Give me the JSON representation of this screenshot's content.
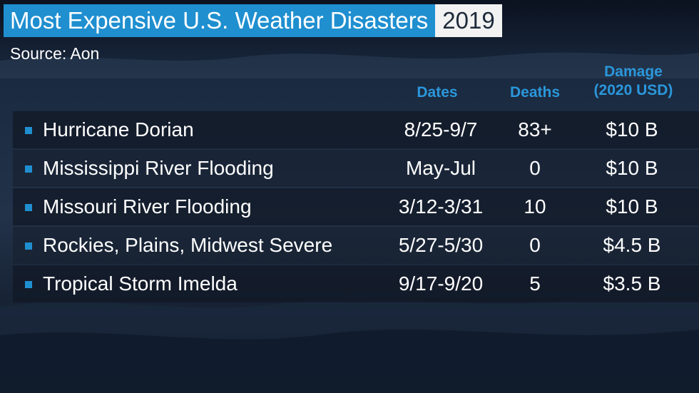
{
  "title": "Most Expensive U.S. Weather Disasters",
  "year": "2019",
  "source": "Source: Aon",
  "colors": {
    "accent": "#1f8fd0",
    "header_text": "#2b97db",
    "background": "#141d2b"
  },
  "chart_data": {
    "type": "table",
    "title": "Most Expensive U.S. Weather Disasters",
    "subtitle": "2019",
    "columns": [
      "",
      "Dates",
      "Deaths",
      "Damage (2020 USD)"
    ],
    "column_headers": {
      "dates": "Dates",
      "deaths": "Deaths",
      "damage_line1": "Damage",
      "damage_line2": "(2020 USD)"
    },
    "rows": [
      {
        "name": "Hurricane Dorian",
        "dates": "8/25-9/7",
        "deaths": "83+",
        "damage": "$10 B"
      },
      {
        "name": "Mississippi River Flooding",
        "dates": "May-Jul",
        "deaths": "0",
        "damage": "$10 B"
      },
      {
        "name": "Missouri River Flooding",
        "dates": "3/12-3/31",
        "deaths": "10",
        "damage": "$10 B"
      },
      {
        "name": "Rockies, Plains, Midwest Severe",
        "dates": "5/27-5/30",
        "deaths": "0",
        "damage": "$4.5 B"
      },
      {
        "name": "Tropical Storm Imelda",
        "dates": "9/17-9/20",
        "deaths": "5",
        "damage": "$3.5 B"
      }
    ],
    "damage_values_billion_usd": [
      10,
      10,
      10,
      4.5,
      3.5
    ]
  }
}
